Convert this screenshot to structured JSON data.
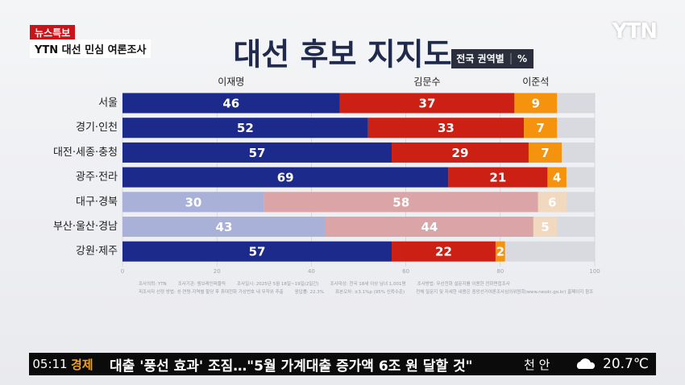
{
  "header": {
    "badge": "뉴스특보",
    "program": "YTN 대선 민심 여론조사",
    "logo": "YTN"
  },
  "chart_data": {
    "type": "bar",
    "orientation": "horizontal",
    "stacked": true,
    "title": "대선 후보 지지도",
    "subtitle": "전국 권역별",
    "unit": "%",
    "categories": [
      "서울",
      "경기·인천",
      "대전·세종·충청",
      "광주·전라",
      "대구·경북",
      "부산·울산·경남",
      "강원·제주"
    ],
    "series": [
      {
        "name": "이재명",
        "color": "#1c2a8c",
        "colors": [
          "#1c2a8c",
          "#1c2a8c",
          "#1c2a8c",
          "#1c2a8c",
          "#a9b1d9",
          "#a9b1d9",
          "#1c2a8c"
        ],
        "values": [
          46,
          52,
          57,
          69,
          30,
          43,
          57
        ]
      },
      {
        "name": "김문수",
        "color": "#cc2014",
        "colors": [
          "#cc2014",
          "#cc2014",
          "#cc2014",
          "#cc2014",
          "#dba5a7",
          "#dba5a7",
          "#cc2014"
        ],
        "values": [
          37,
          33,
          29,
          21,
          58,
          44,
          22
        ]
      },
      {
        "name": "이준석",
        "color": "#f5920e",
        "colors": [
          "#f5920e",
          "#f5920e",
          "#f5920e",
          "#f5920e",
          "#f1d9c0",
          "#f1d9c0",
          "#f5920e"
        ],
        "values": [
          9,
          7,
          7,
          4,
          6,
          5,
          2
        ]
      }
    ],
    "xlim": [
      0,
      100
    ],
    "xticks": [
      0,
      20,
      40,
      60,
      80,
      100
    ],
    "grid": true
  },
  "footnotes": [
    "조사의뢰: YTN",
    "조사기관: 엠브레인퍼블릭",
    "조사일시: 2025년 5월 18일~19일(2일간)",
    "조사대상: 전국 18세 이상 남녀 1,001명",
    "조사방법: 무선전화 설문지를 이용한 전화면접조사",
    "피조사자 선정 방법: 성·연령·지역별 할당 후 휴대전화 가상번호 내 무작위 추출",
    "응답률: 22.3%",
    "표본오차: ±3.1%p (95% 신뢰수준)",
    "전체 질문지 및 자세한 내용은 중앙선거여론조사심의위원회(www.nesdc.go.kr) 홈페이지 참조"
  ],
  "ticker": {
    "time": "05:11",
    "section": "경제",
    "headline": "대출 '풍선 효과' 조짐…\"5월 가계대출 증가액 6조 원 달할 것\"",
    "city": "천 안",
    "temperature": "20.7℃"
  }
}
